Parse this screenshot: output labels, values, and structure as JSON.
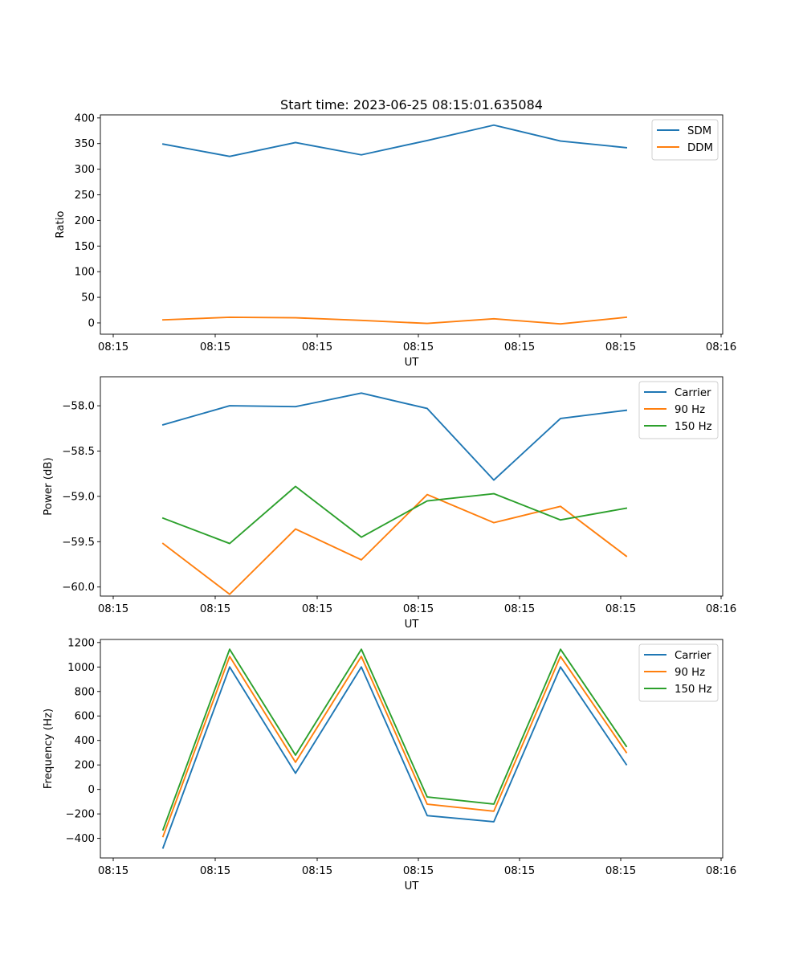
{
  "title": "Start time: 2023-06-25 08:15:01.635084",
  "colors": {
    "blue": "#1f77b4",
    "orange": "#ff7f0e",
    "green": "#2ca02c"
  },
  "chart_data": [
    {
      "type": "line",
      "xlabel": "UT",
      "ylabel": "Ratio",
      "x_tick_labels": [
        "08:15",
        "08:15",
        "08:15",
        "08:15",
        "08:15",
        "08:15",
        "08:15",
        "08:16"
      ],
      "y_ticks": [
        0,
        50,
        100,
        150,
        200,
        250,
        300,
        350,
        400
      ],
      "y_tick_labels": [
        "0",
        "50",
        "100",
        "150",
        "200",
        "250",
        "300",
        "350",
        "400"
      ],
      "ylim": [
        -22,
        406
      ],
      "legend_position": "upper right",
      "series": [
        {
          "name": "SDM",
          "color": "#1f77b4",
          "values": [
            349,
            325,
            352,
            328,
            356,
            386,
            355,
            342
          ]
        },
        {
          "name": "DDM",
          "color": "#ff7f0e",
          "values": [
            6,
            11,
            10,
            5,
            -1,
            8,
            -2,
            11
          ]
        }
      ]
    },
    {
      "type": "line",
      "xlabel": "UT",
      "ylabel": "Power (dB)",
      "x_tick_labels": [
        "08:15",
        "08:15",
        "08:15",
        "08:15",
        "08:15",
        "08:15",
        "08:15",
        "08:16"
      ],
      "y_ticks": [
        -60.0,
        -59.5,
        -59.0,
        -58.5,
        -58.0
      ],
      "y_tick_labels": [
        "−60.0",
        "−59.5",
        "−59.0",
        "−58.5",
        "−58.0"
      ],
      "ylim": [
        -60.1,
        -57.68
      ],
      "legend_position": "upper right",
      "series": [
        {
          "name": "Carrier",
          "color": "#1f77b4",
          "values": [
            -58.21,
            -58.0,
            -58.01,
            -57.86,
            -58.03,
            -58.82,
            -58.14,
            -58.05
          ]
        },
        {
          "name": "90 Hz",
          "color": "#ff7f0e",
          "values": [
            -59.52,
            -60.08,
            -59.36,
            -59.7,
            -58.98,
            -59.29,
            -59.11,
            -59.66
          ]
        },
        {
          "name": "150 Hz",
          "color": "#2ca02c",
          "values": [
            -59.24,
            -59.52,
            -58.89,
            -59.45,
            -59.05,
            -58.97,
            -59.26,
            -59.13
          ]
        }
      ]
    },
    {
      "type": "line",
      "xlabel": "UT",
      "ylabel": "Frequency (Hz)",
      "x_tick_labels": [
        "08:15",
        "08:15",
        "08:15",
        "08:15",
        "08:15",
        "08:15",
        "08:15",
        "08:16"
      ],
      "y_ticks": [
        -400,
        -200,
        0,
        200,
        400,
        600,
        800,
        1000,
        1200
      ],
      "y_tick_labels": [
        "−400",
        "−200",
        "0",
        "200",
        "400",
        "600",
        "800",
        "1000",
        "1200"
      ],
      "ylim": [
        -560,
        1225
      ],
      "legend_position": "upper right",
      "series": [
        {
          "name": "Carrier",
          "color": "#1f77b4",
          "values": [
            -478,
            1000,
            132,
            1000,
            -214,
            -264,
            1000,
            203
          ]
        },
        {
          "name": "90 Hz",
          "color": "#ff7f0e",
          "values": [
            -385,
            1086,
            222,
            1086,
            -121,
            -178,
            1086,
            302
          ]
        },
        {
          "name": "150 Hz",
          "color": "#2ca02c",
          "values": [
            -330,
            1145,
            280,
            1145,
            -62,
            -120,
            1145,
            352
          ]
        }
      ]
    }
  ]
}
